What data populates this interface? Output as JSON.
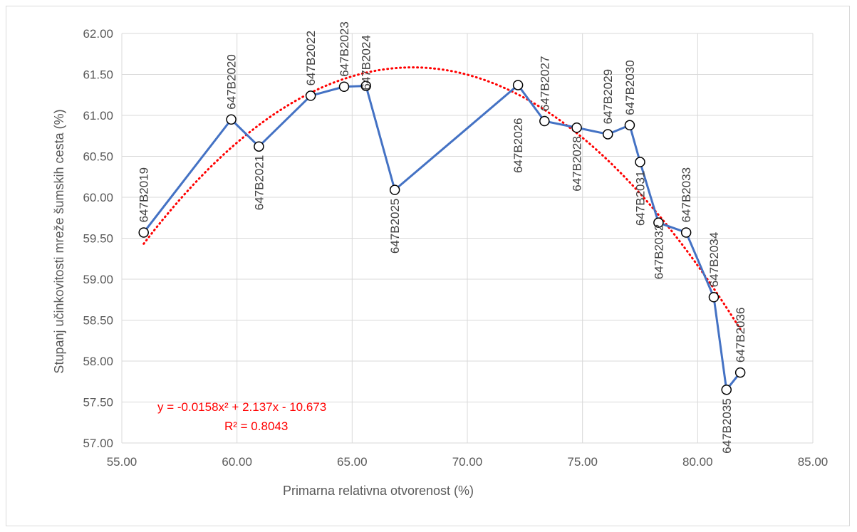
{
  "chart_data": {
    "type": "scatter",
    "xlabel": "Primarna relativna otvorenost (%)",
    "ylabel": "Stupanj učinkovitosti mreže šumskih cesta (%)",
    "xlim": [
      55,
      85
    ],
    "ylim": [
      57,
      62
    ],
    "x_ticks": [
      "55.00",
      "60.00",
      "65.00",
      "70.00",
      "75.00",
      "80.00",
      "85.00"
    ],
    "y_ticks": [
      "57.00",
      "57.50",
      "58.00",
      "58.50",
      "59.00",
      "59.50",
      "60.00",
      "60.50",
      "61.00",
      "61.50",
      "62.00"
    ],
    "grid": true,
    "colors": {
      "series": "#4472c4",
      "trend": "#ff0000",
      "marker_fill": "#ffffff",
      "marker_stroke": "#000000"
    },
    "series": [
      {
        "line": true,
        "points": [
          {
            "label": "647B2019",
            "x": 55.95,
            "y": 59.57
          },
          {
            "label": "647B2020",
            "x": 59.75,
            "y": 60.95
          },
          {
            "label": "647B2021",
            "x": 60.95,
            "y": 60.62
          },
          {
            "label": "647B2022",
            "x": 63.2,
            "y": 61.24
          },
          {
            "label": "647B2023",
            "x": 64.65,
            "y": 61.35
          },
          {
            "label": "647B2024",
            "x": 65.6,
            "y": 61.36
          },
          {
            "label": "647B2025",
            "x": 66.85,
            "y": 60.09
          },
          {
            "label": "647B2026",
            "x": 72.2,
            "y": 61.37
          },
          {
            "label": "647B2027",
            "x": 73.35,
            "y": 60.93
          },
          {
            "label": "647B2028",
            "x": 74.75,
            "y": 60.85
          },
          {
            "label": "647B2029",
            "x": 76.1,
            "y": 60.77
          },
          {
            "label": "647B2030",
            "x": 77.05,
            "y": 60.88
          },
          {
            "label": "647B2031",
            "x": 77.5,
            "y": 60.43
          },
          {
            "label": "647B2032",
            "x": 78.3,
            "y": 59.69
          },
          {
            "label": "647B2033",
            "x": 79.5,
            "y": 59.57
          },
          {
            "label": "647B2034",
            "x": 80.7,
            "y": 58.78
          },
          {
            "label": "647B2035",
            "x": 81.25,
            "y": 57.65
          },
          {
            "label": "647B2036",
            "x": 81.85,
            "y": 57.86
          }
        ]
      }
    ],
    "trendline": {
      "type": "polynomial",
      "coefficients": [
        -0.0158,
        2.137,
        -10.673
      ],
      "x_range": [
        55.95,
        81.85
      ],
      "equation": "y = -0.0158x² + 2.137x - 10.673",
      "r_squared": "R² = 0.8043"
    }
  }
}
